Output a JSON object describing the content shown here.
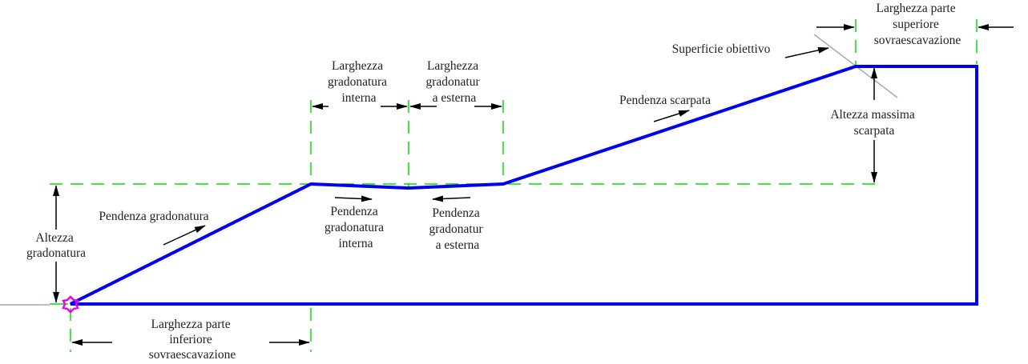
{
  "colors": {
    "profile": "#0000ee",
    "construction": "#00e000",
    "target_surface": "#aaaaaa",
    "origin_marker": "#ee00ee"
  },
  "labels": {
    "bench_height": [
      "Altezza",
      "gradonatura"
    ],
    "bench_slope": "Pendenza gradonatura",
    "bottom_overexcavation_width": [
      "Larghezza parte",
      "inferiore",
      "sovraescavazione"
    ],
    "inner_bench_width": [
      "Larghezza",
      "gradonatura",
      "interna"
    ],
    "outer_bench_width": [
      "Larghezza",
      "gradonatur",
      "a esterna"
    ],
    "inner_bench_slope": [
      "Pendenza",
      "gradonatura",
      "interna"
    ],
    "outer_bench_slope": [
      "Pendenza",
      "gradonatur",
      "a esterna"
    ],
    "cut_slope": "Pendenza scarpata",
    "target_surface": "Superficie obiettivo",
    "top_overexcavation_width": [
      "Larghezza parte",
      "superiore",
      "sovraescavazione"
    ],
    "max_cut_height": [
      "Altezza massima",
      "scarpata"
    ]
  }
}
